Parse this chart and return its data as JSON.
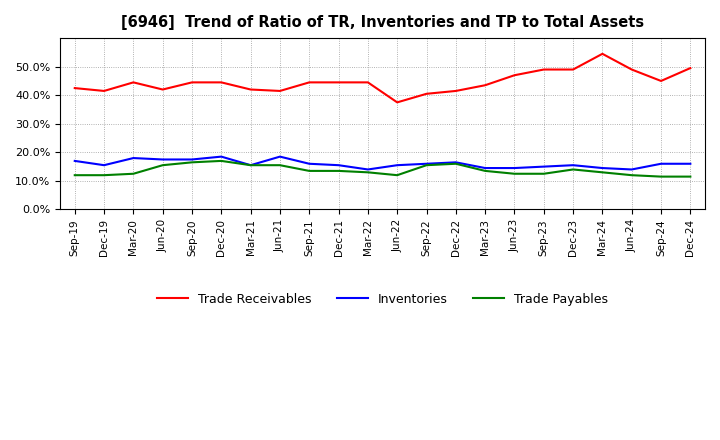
{
  "title": "[6946]  Trend of Ratio of TR, Inventories and TP to Total Assets",
  "x_labels": [
    "Sep-19",
    "Dec-19",
    "Mar-20",
    "Jun-20",
    "Sep-20",
    "Dec-20",
    "Mar-21",
    "Jun-21",
    "Sep-21",
    "Dec-21",
    "Mar-22",
    "Jun-22",
    "Sep-22",
    "Dec-22",
    "Mar-23",
    "Jun-23",
    "Sep-23",
    "Dec-23",
    "Mar-24",
    "Jun-24",
    "Sep-24",
    "Dec-24"
  ],
  "trade_receivables": [
    0.425,
    0.415,
    0.445,
    0.42,
    0.445,
    0.445,
    0.42,
    0.415,
    0.445,
    0.445,
    0.445,
    0.375,
    0.405,
    0.415,
    0.435,
    0.47,
    0.49,
    0.49,
    0.545,
    0.49,
    0.45,
    0.495
  ],
  "inventories": [
    0.17,
    0.155,
    0.18,
    0.175,
    0.175,
    0.185,
    0.155,
    0.185,
    0.16,
    0.155,
    0.14,
    0.155,
    0.16,
    0.165,
    0.145,
    0.145,
    0.15,
    0.155,
    0.145,
    0.14,
    0.16,
    0.16
  ],
  "trade_payables": [
    0.12,
    0.12,
    0.125,
    0.155,
    0.165,
    0.17,
    0.155,
    0.155,
    0.135,
    0.135,
    0.13,
    0.12,
    0.155,
    0.16,
    0.135,
    0.125,
    0.125,
    0.14,
    0.13,
    0.12,
    0.115,
    0.115
  ],
  "tr_color": "#ff0000",
  "inv_color": "#0000ff",
  "tp_color": "#008000",
  "ylim": [
    0.0,
    0.6
  ],
  "yticks": [
    0.0,
    0.1,
    0.2,
    0.3,
    0.4,
    0.5
  ],
  "background_color": "#ffffff",
  "grid_color": "#999999"
}
